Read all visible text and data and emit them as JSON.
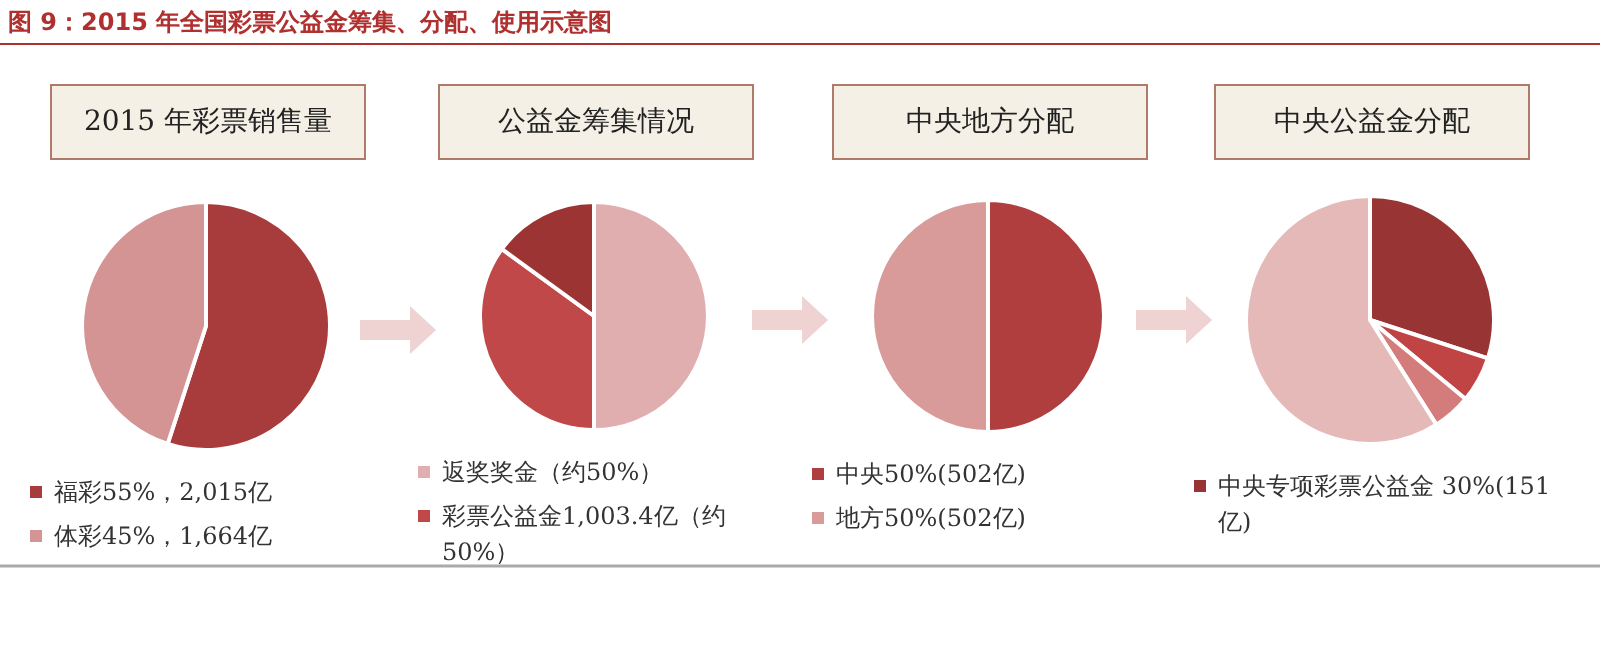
{
  "chart_data": [
    {
      "type": "other",
      "title": "图 9：2015 年全国彩票公益金筹集、分配、使用示意图"
    },
    {
      "type": "pie",
      "title": "2015 年彩票销售量",
      "categories": [
        "福彩55%，2,015亿",
        "体彩45%，1,664亿"
      ],
      "values": [
        55,
        45
      ],
      "colors": [
        "#a83c3c",
        "#d49494"
      ],
      "legend": "bottom"
    },
    {
      "type": "pie",
      "title": "公益金筹集情况",
      "categories": [
        "返奖奖金（约50%）",
        "彩票公益金1,003.4亿（约50%）",
        null
      ],
      "values": [
        50,
        35,
        15
      ],
      "colors": [
        "#e0aeae",
        "#c04848",
        "#9c3434"
      ],
      "legend": "bottom"
    },
    {
      "type": "pie",
      "title": "中央地方分配",
      "categories": [
        "中央50%(502亿)",
        "地方50%(502亿)"
      ],
      "values": [
        50,
        50
      ],
      "colors": [
        "#b03e3e",
        "#d99a9a"
      ],
      "legend": "bottom"
    },
    {
      "type": "pie",
      "title": "中央公益金分配",
      "categories": [
        "中央专项彩票公益金 30%(151亿)",
        null,
        null,
        null
      ],
      "values": [
        30,
        6,
        5,
        59
      ],
      "colors": [
        "#983434",
        "#c04444",
        "#d47c7c",
        "#e6b9b9"
      ],
      "legend": "bottom"
    }
  ]
}
